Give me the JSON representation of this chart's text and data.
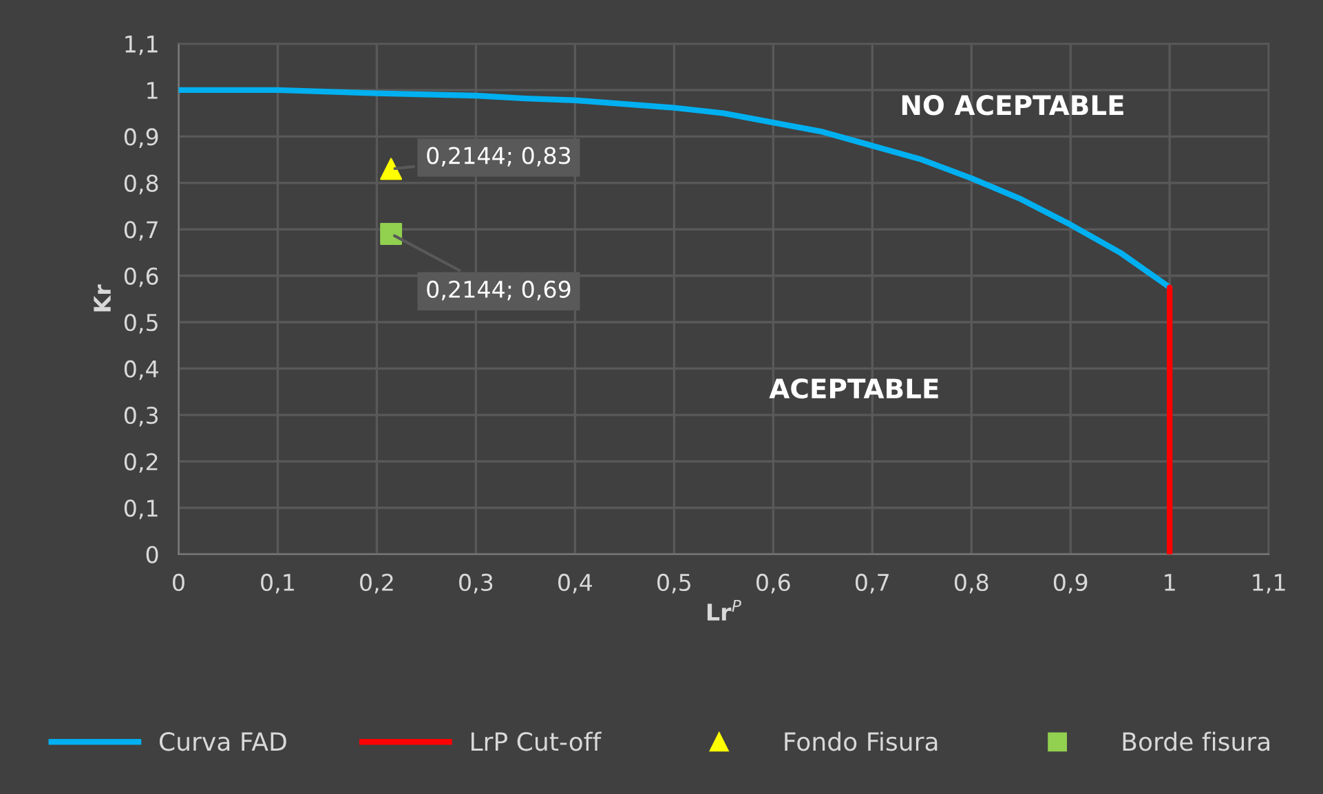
{
  "chart_data": {
    "type": "line",
    "xlabel": "Lr$^{P}$",
    "ylabel": "Kr",
    "xlim": [
      0,
      1.1
    ],
    "ylim": [
      0,
      1.1
    ],
    "xticks": [
      0,
      {
        "value": 0.1,
        "label": "0,1"
      },
      {
        "value": 0.2,
        "label": "0,2"
      },
      {
        "value": 0.3,
        "label": "0,3"
      },
      {
        "value": 0.4,
        "label": "0,4"
      },
      {
        "value": 0.5,
        "label": "0,5"
      },
      {
        "value": 0.6,
        "label": "0,6"
      },
      {
        "value": 0.7,
        "label": "0,7"
      },
      {
        "value": 0.8,
        "label": "0,8"
      },
      {
        "value": 0.9,
        "label": "0,9"
      },
      1,
      {
        "value": 1.1,
        "label": "1,1"
      }
    ],
    "yticks": [
      0,
      {
        "value": 0.1,
        "label": "0,1"
      },
      {
        "value": 0.2,
        "label": "0,2"
      },
      {
        "value": 0.3,
        "label": "0,3"
      },
      {
        "value": 0.4,
        "label": "0,4"
      },
      {
        "value": 0.5,
        "label": "0,5"
      },
      {
        "value": 0.6,
        "label": "0,6"
      },
      {
        "value": 0.7,
        "label": "0,7"
      },
      {
        "value": 0.8,
        "label": "0,8"
      },
      {
        "value": 0.9,
        "label": "0,9"
      },
      1,
      {
        "value": 1.1,
        "label": "1,1"
      }
    ],
    "grid": true,
    "legend": "bottom",
    "series": [
      {
        "name": "Curva FAD",
        "color": "#00b0f0",
        "x": [
          0,
          0.1,
          0.2,
          0.3,
          0.35,
          0.4,
          0.5,
          0.55,
          0.6,
          0.65,
          0.7,
          0.75,
          0.8,
          0.85,
          0.9,
          0.95,
          1.0
        ],
        "values": [
          1.0,
          1.0,
          0.993,
          0.988,
          0.982,
          0.978,
          0.962,
          0.95,
          0.93,
          0.91,
          0.88,
          0.85,
          0.81,
          0.765,
          0.71,
          0.65,
          0.575
        ]
      },
      {
        "name": "LrP Cut-off",
        "color": "#ff0000",
        "x": [
          1.0,
          1.0
        ],
        "values": [
          0,
          0.575
        ]
      },
      {
        "name": "Fondo Fisura",
        "type": "scatter",
        "marker": "triangle",
        "color": "#ffff00",
        "x": [
          0.2144
        ],
        "values": [
          0.83
        ],
        "value_labels": [
          "0,2144; 0,83"
        ]
      },
      {
        "name": "Borde fisura",
        "type": "scatter",
        "marker": "square",
        "color": "#92d050",
        "x": [
          0.2144
        ],
        "values": [
          0.69
        ],
        "value_labels": [
          "0,2144; 0,69"
        ]
      }
    ],
    "annotations": [
      "NO ACEPTABLE",
      "ACEPTABLE"
    ]
  }
}
